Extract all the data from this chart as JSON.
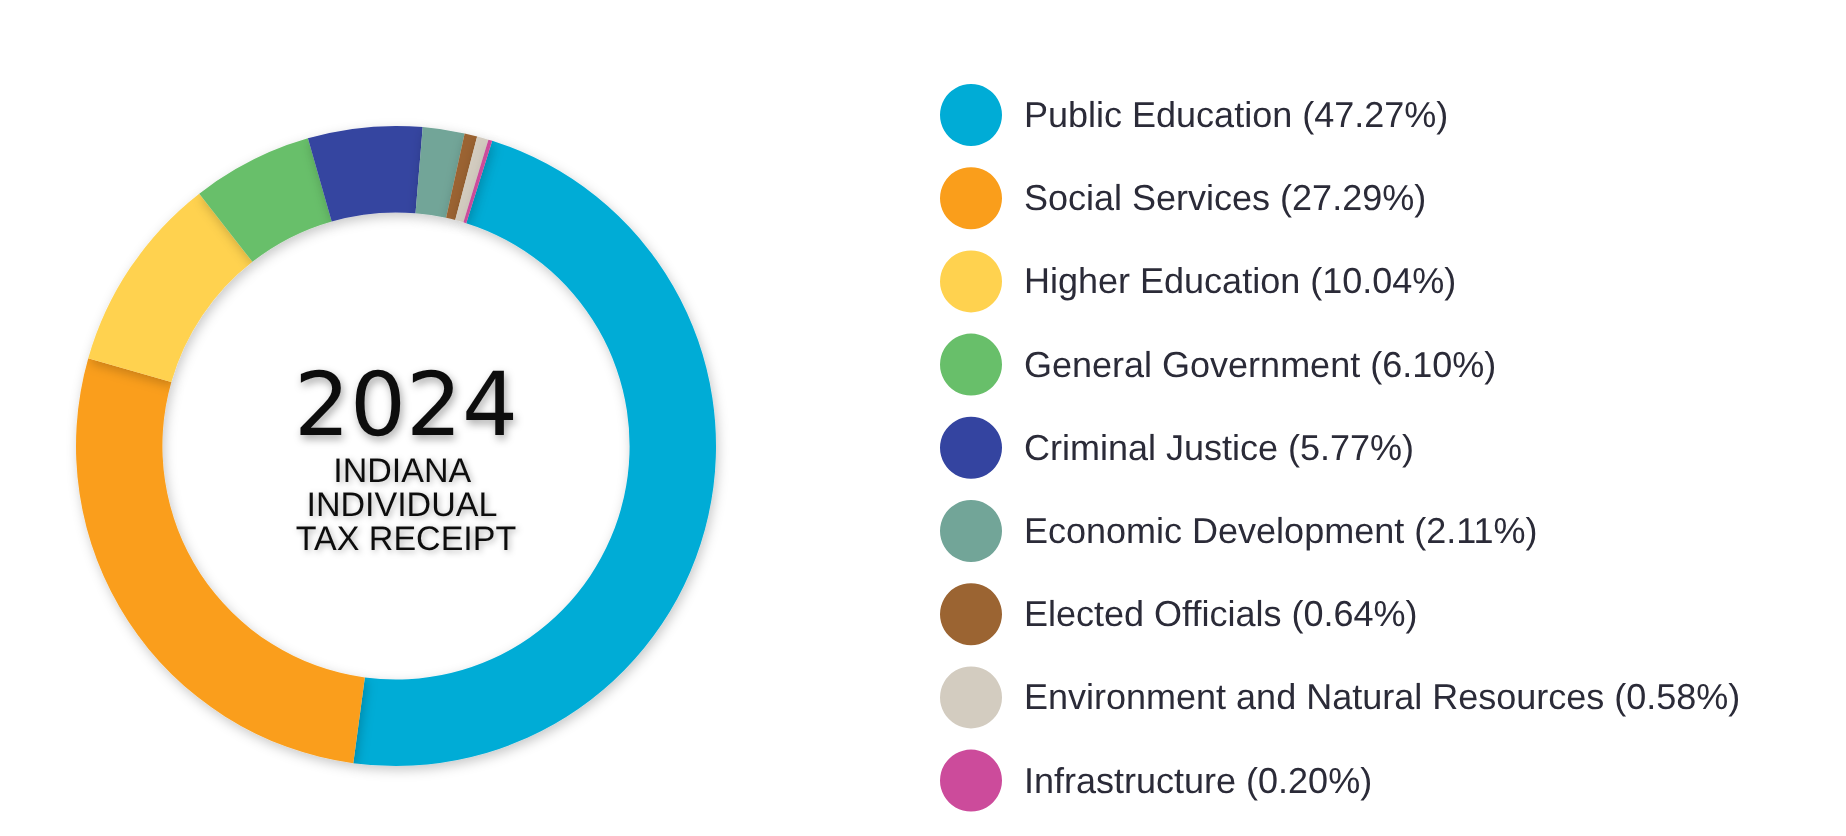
{
  "chart_data": {
    "type": "donut",
    "title": "2024",
    "subtitle": "INDIANA INDIVIDUAL TAX RECEIPT",
    "categories": [
      "Public Education (47.27%)",
      "Social Services (27.29%)",
      "Higher Education (10.04%)",
      "General Government (6.10%)",
      "Criminal Justice (5.77%)",
      "Economic Development (2.11%)",
      "Elected Officials (0.64%)",
      "Environment and Natural Resources (0.58%)",
      "Infrastructure (0.20%)"
    ],
    "values": [
      47.27,
      27.29,
      10.04,
      6.1,
      5.77,
      2.11,
      0.64,
      0.58,
      0.2
    ],
    "colors": [
      "#00acd6",
      "#fa9e1b",
      "#ffd24f",
      "#68bf6a",
      "#3444a0",
      "#72a598",
      "#9b6432",
      "#d3ccc0",
      "#cc4b9b"
    ],
    "legend": "right"
  }
}
